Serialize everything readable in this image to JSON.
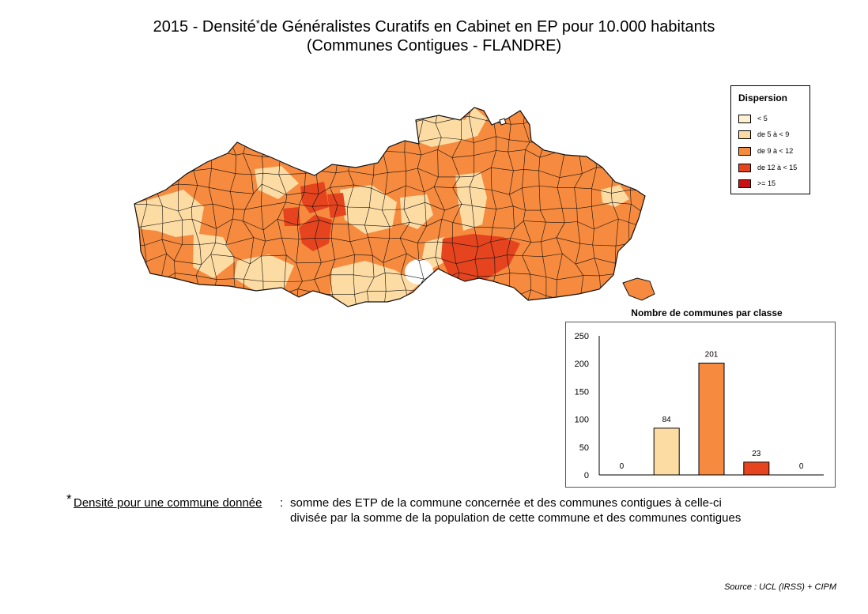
{
  "title": {
    "line1_part1": "2015 - Densité",
    "line1_star": "*",
    "line1_part2": "de Généralistes Curatifs en Cabinet en EP pour 10.000 habitants",
    "line2": "(Communes Contigues - FLANDRE)"
  },
  "legend": {
    "title": "Dispersion",
    "items": [
      {
        "label": "< 5",
        "color": "#fff0d2"
      },
      {
        "label": "de 5 à < 9",
        "color": "#fddca4"
      },
      {
        "label": "de 9 à < 12",
        "color": "#f68a3e"
      },
      {
        "label": "de 12 à < 15",
        "color": "#e5441e"
      },
      {
        "label": ">= 15",
        "color": "#cc1111"
      }
    ]
  },
  "colors": {
    "outline": "#111111",
    "map_fill_class_1": "#fddca4",
    "map_fill_class_2": "#f68a3e",
    "map_fill_class_3": "#e5441e"
  },
  "chart_data": {
    "type": "bar",
    "title": "Nombre de communes par classe",
    "categories": [
      "< 5",
      "de 5 à < 9",
      "de 9 à < 12",
      "de 12 à < 15",
      ">= 15"
    ],
    "values": [
      0,
      84,
      201,
      23,
      0
    ],
    "colors": [
      "#fff0d2",
      "#fddca4",
      "#f68a3e",
      "#e5441e",
      "#cc1111"
    ],
    "ylim": [
      0,
      250
    ],
    "yticks": [
      0,
      50,
      100,
      150,
      200,
      250
    ],
    "xlabel": "",
    "ylabel": "",
    "grid": false
  },
  "footnote": {
    "star": "*",
    "label": "Densité pour une commune donnée",
    "colon": ":",
    "line1": "somme des ETP de la commune concernée et des communes contigues à celle-ci",
    "line2": "divisée par la somme de la population de cette commune et des communes contigues"
  },
  "source": "Source : UCL (IRSS) + CIPM"
}
